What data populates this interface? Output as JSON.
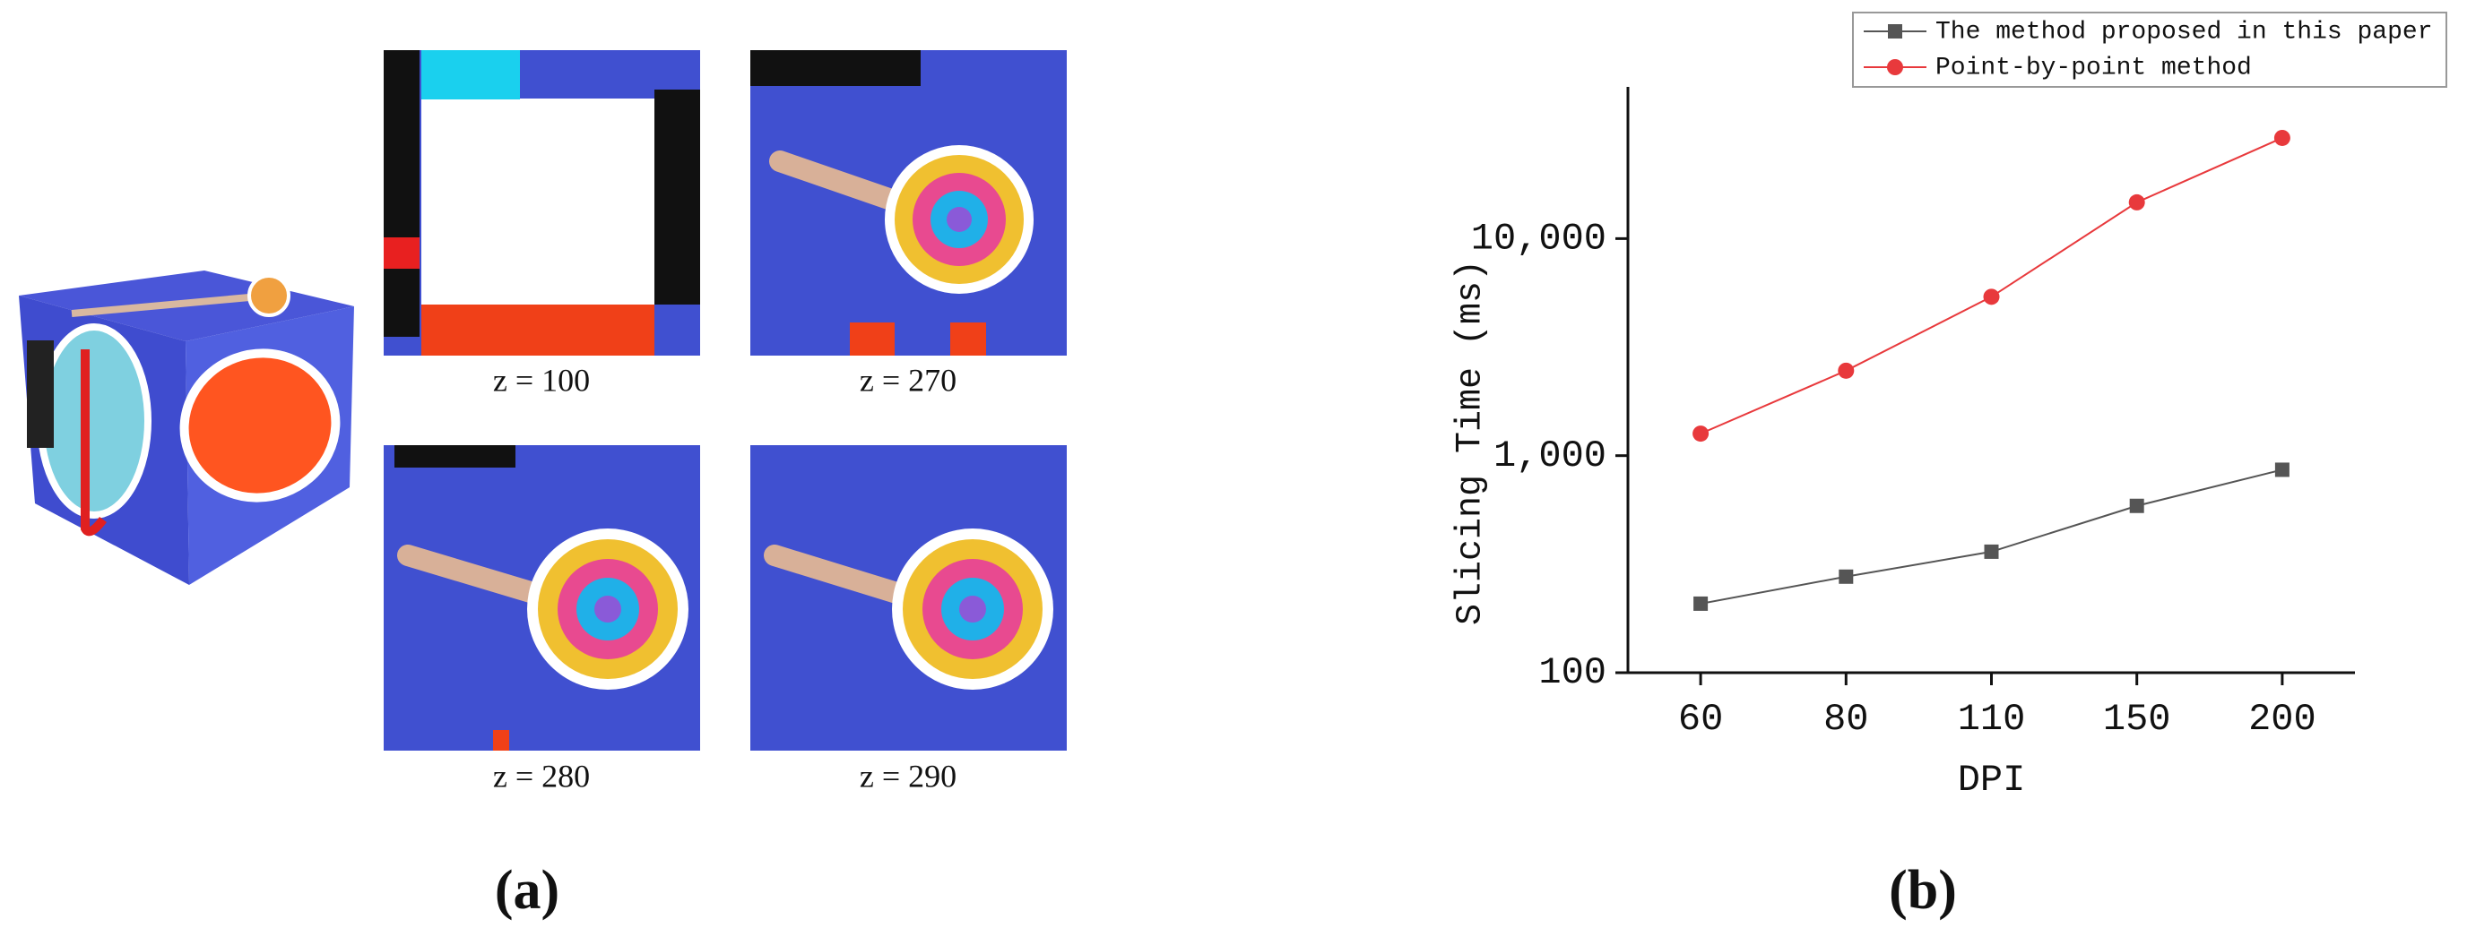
{
  "panels": {
    "a": {
      "label": "(a)",
      "slices": [
        {
          "caption": "z = 100"
        },
        {
          "caption": "z = 270"
        },
        {
          "caption": "z = 280"
        },
        {
          "caption": "z = 290"
        }
      ]
    },
    "b": {
      "label": "(b)"
    }
  },
  "chart_data": {
    "type": "line",
    "x_label": "DPI",
    "y_label": "Slicing Time (ms)",
    "categories": [
      "60",
      "80",
      "110",
      "150",
      "200"
    ],
    "yscale": "log",
    "ylim": [
      100,
      50000
    ],
    "yticks": [
      100,
      {
        "value": 1000,
        "label": "1,000"
      },
      {
        "value": 10000,
        "label": "10,000"
      }
    ],
    "legend": "top-right",
    "series": [
      {
        "name": "The method proposed in this paper",
        "color": "#555555",
        "marker": "square",
        "values": [
          208,
          277,
          361,
          587,
          861
        ]
      },
      {
        "name": "Point-by-point method",
        "color": "#e8393c",
        "marker": "circle",
        "values": [
          1263,
          2463,
          5395,
          14690,
          29100
        ]
      }
    ]
  }
}
